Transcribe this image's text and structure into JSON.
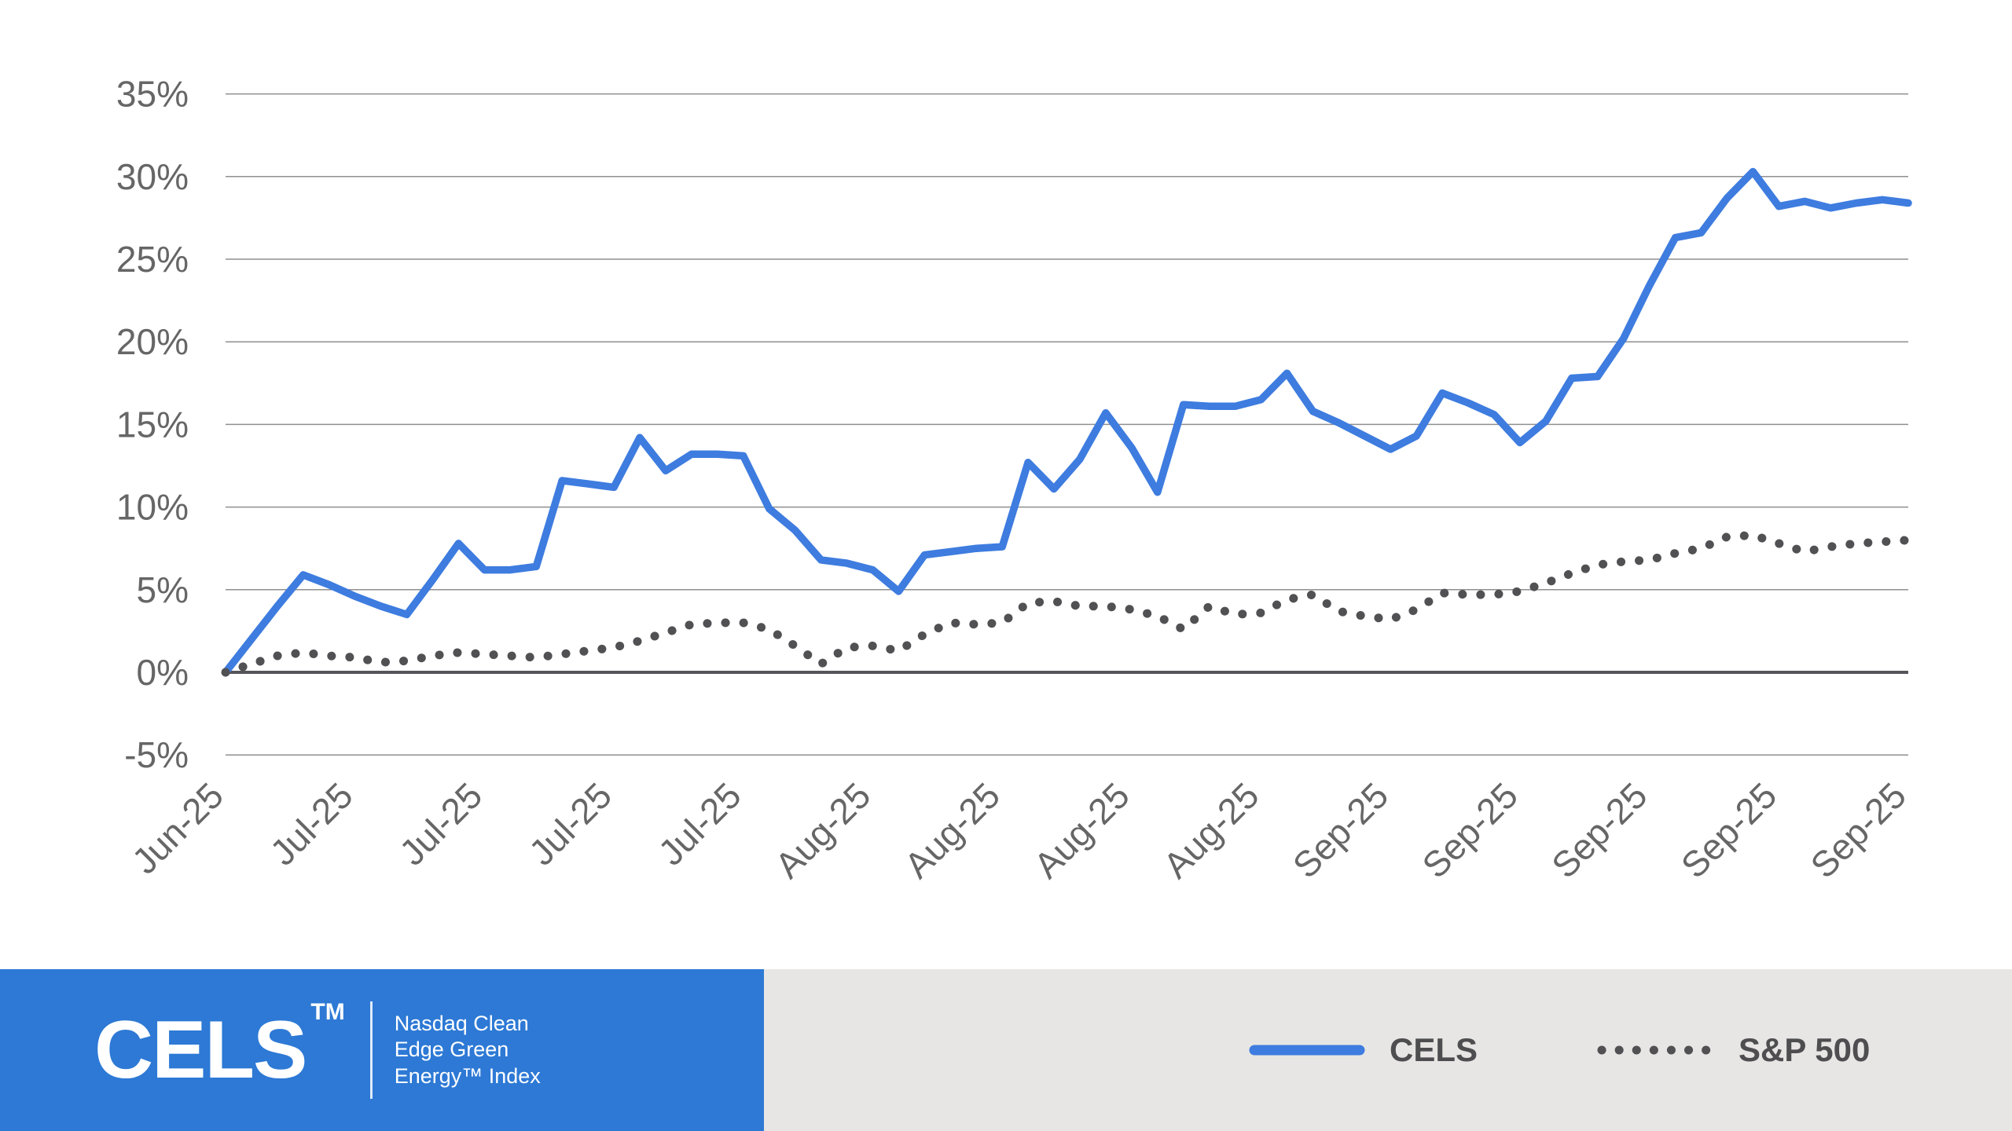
{
  "chart_data": {
    "type": "line",
    "title": "",
    "x_tick_labels": [
      "Jun-25",
      "Jul-25",
      "Jul-25",
      "Jul-25",
      "Jul-25",
      "Aug-25",
      "Aug-25",
      "Aug-25",
      "Aug-25",
      "Sep-25",
      "Sep-25",
      "Sep-25",
      "Sep-25",
      "Sep-25"
    ],
    "points_per_x_label": 5,
    "y_tick_labels": [
      "35%",
      "30%",
      "25%",
      "20%",
      "15%",
      "10%",
      "5%",
      "0%",
      "-5%"
    ],
    "y_tick_values": [
      35,
      30,
      25,
      20,
      15,
      10,
      5,
      0,
      -5
    ],
    "ylim": [
      -5,
      35
    ],
    "grid": "horizontal-only",
    "zero_axis_highlighted": true,
    "legend_position": "bottom",
    "series": [
      {
        "name": "CELS",
        "style": "solid",
        "color": "#3e7cdf",
        "values": [
          0.0,
          2.0,
          4.0,
          5.9,
          5.3,
          4.6,
          4.0,
          3.5,
          5.6,
          7.8,
          6.2,
          6.2,
          6.4,
          11.6,
          11.4,
          11.2,
          14.2,
          12.2,
          13.2,
          13.2,
          13.1,
          9.9,
          8.6,
          6.8,
          6.6,
          6.2,
          4.9,
          7.1,
          7.3,
          7.5,
          7.6,
          12.7,
          11.1,
          12.9,
          15.7,
          13.6,
          10.9,
          16.2,
          16.1,
          16.1,
          16.5,
          18.1,
          15.8,
          15.1,
          14.3,
          13.5,
          14.3,
          16.9,
          16.3,
          15.6,
          13.9,
          15.2,
          17.8,
          17.9,
          20.2,
          23.4,
          26.3,
          26.6,
          28.7,
          30.3,
          28.2,
          28.5,
          28.1,
          28.4,
          28.6,
          28.4
        ]
      },
      {
        "name": "S&P 500",
        "style": "dotted",
        "color": "#515154",
        "values": [
          0.0,
          0.5,
          1.0,
          1.2,
          1.0,
          0.9,
          0.6,
          0.7,
          1.0,
          1.2,
          1.1,
          1.0,
          0.9,
          1.1,
          1.3,
          1.5,
          1.9,
          2.4,
          2.9,
          3.0,
          3.0,
          2.6,
          1.6,
          0.5,
          1.5,
          1.6,
          1.3,
          2.3,
          3.0,
          2.9,
          3.0,
          4.2,
          4.3,
          4.0,
          4.0,
          3.8,
          3.4,
          2.6,
          4.0,
          3.5,
          3.6,
          4.4,
          4.7,
          3.7,
          3.4,
          3.2,
          3.8,
          4.8,
          4.7,
          4.7,
          4.9,
          5.4,
          6.0,
          6.5,
          6.7,
          6.8,
          7.2,
          7.5,
          8.2,
          8.3,
          7.8,
          7.3,
          7.6,
          7.8,
          7.9,
          8.0
        ]
      }
    ],
    "colors": {
      "gridline": "#8f8f8f",
      "zero_axis": "#55555a",
      "tick_text": "#666666"
    }
  },
  "footer": {
    "logo_text": "CELS",
    "logo_tm": "TM",
    "tagline_lines": [
      "Nasdaq Clean",
      "Edge Green",
      "Energy™ Index"
    ],
    "legend": [
      {
        "label": "CELS",
        "swatch": "solid-line",
        "color": "#3e7cdf"
      },
      {
        "label": "S&P 500",
        "swatch": "dotted-line",
        "color": "#515154"
      }
    ],
    "colors": {
      "logo_box": "#2d79d5",
      "band": "#e7e6e4"
    }
  }
}
